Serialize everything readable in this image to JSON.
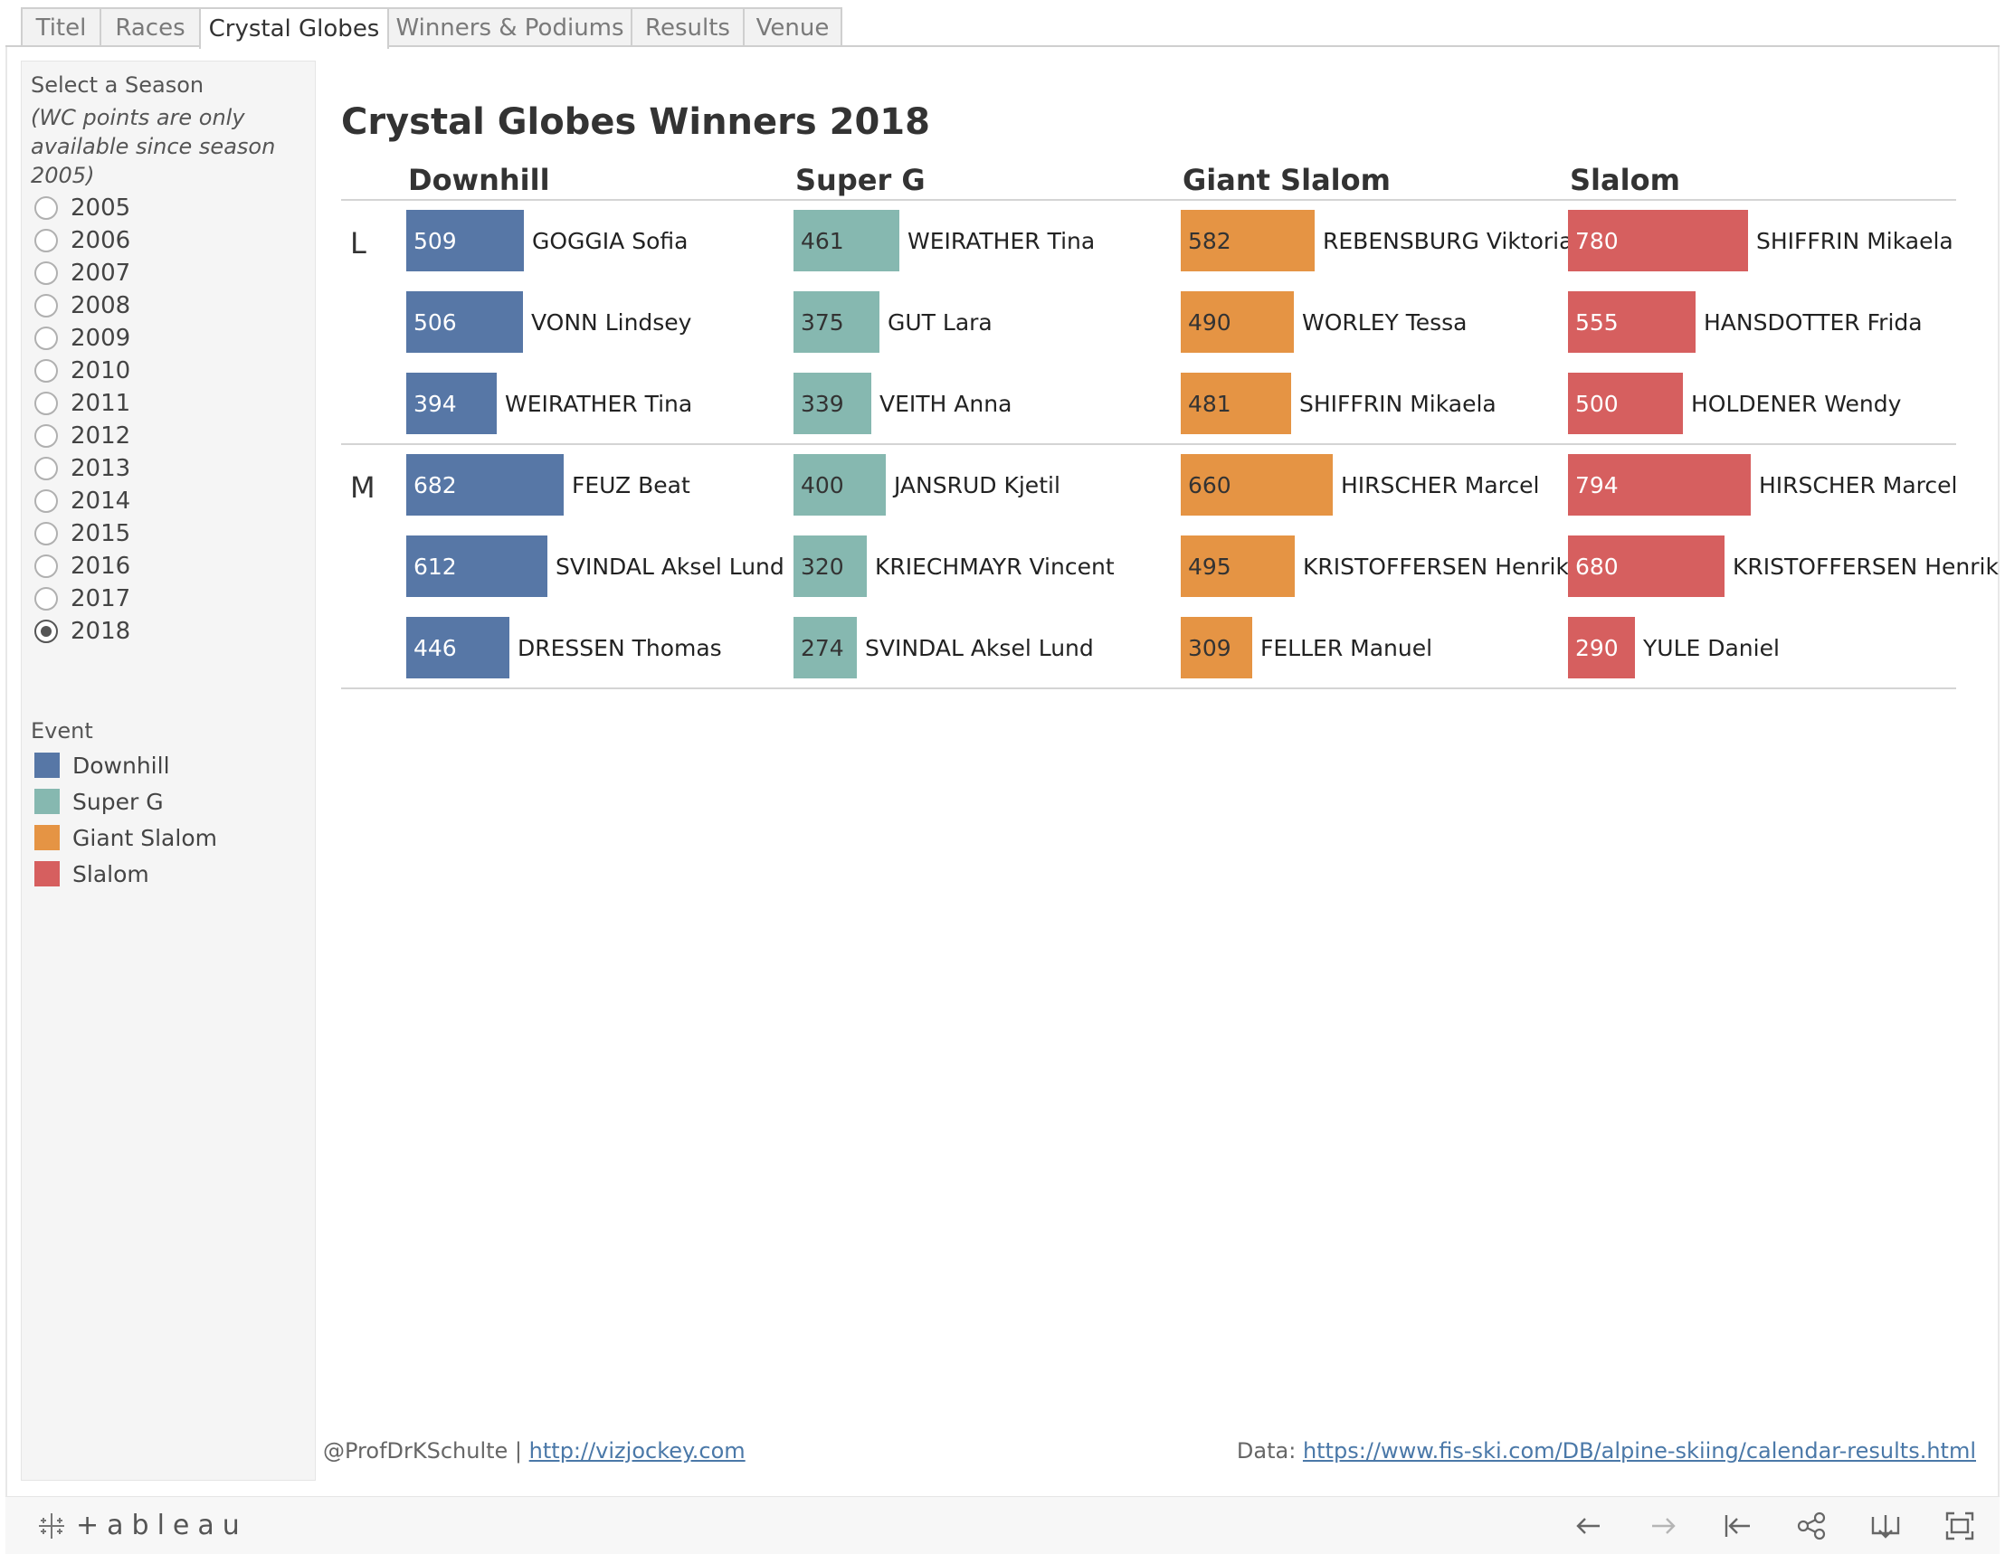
{
  "tabs": [
    {
      "label": "Titel",
      "active": false
    },
    {
      "label": "Races",
      "active": false
    },
    {
      "label": "Crystal Globes",
      "active": true
    },
    {
      "label": "Winners & Podiums",
      "active": false
    },
    {
      "label": "Results",
      "active": false
    },
    {
      "label": "Venue",
      "active": false
    }
  ],
  "sidebar": {
    "season_label": "Select a Season",
    "season_note": "(WC points are only available since season 2005)",
    "seasons": [
      "2005",
      "2006",
      "2007",
      "2008",
      "2009",
      "2010",
      "2011",
      "2012",
      "2013",
      "2014",
      "2015",
      "2016",
      "2017",
      "2018"
    ],
    "selected_season": "2018",
    "event_label": "Event",
    "events": [
      {
        "label": "Downhill",
        "color": "#5777a6"
      },
      {
        "label": "Super G",
        "color": "#86b8b0"
      },
      {
        "label": "Giant Slalom",
        "color": "#e59444"
      },
      {
        "label": "Slalom",
        "color": "#d65f5f"
      }
    ]
  },
  "chart_data": {
    "type": "bar",
    "title": "Crystal Globes Winners 2018",
    "columns": [
      "Downhill",
      "Super G",
      "Giant Slalom",
      "Slalom"
    ],
    "groups": [
      {
        "label": "L",
        "columns": [
          [
            {
              "value": 509,
              "name": "GOGGIA Sofia"
            },
            {
              "value": 506,
              "name": "VONN Lindsey"
            },
            {
              "value": 394,
              "name": "WEIRATHER Tina"
            }
          ],
          [
            {
              "value": 461,
              "name": "WEIRATHER Tina"
            },
            {
              "value": 375,
              "name": "GUT Lara"
            },
            {
              "value": 339,
              "name": "VEITH Anna"
            }
          ],
          [
            {
              "value": 582,
              "name": "REBENSBURG Viktoria"
            },
            {
              "value": 490,
              "name": "WORLEY Tessa"
            },
            {
              "value": 481,
              "name": "SHIFFRIN Mikaela"
            }
          ],
          [
            {
              "value": 780,
              "name": "SHIFFRIN Mikaela"
            },
            {
              "value": 555,
              "name": "HANSDOTTER Frida"
            },
            {
              "value": 500,
              "name": "HOLDENER Wendy"
            }
          ]
        ]
      },
      {
        "label": "M",
        "columns": [
          [
            {
              "value": 682,
              "name": "FEUZ Beat"
            },
            {
              "value": 612,
              "name": "SVINDAL Aksel Lund"
            },
            {
              "value": 446,
              "name": "DRESSEN Thomas"
            }
          ],
          [
            {
              "value": 400,
              "name": "JANSRUD Kjetil"
            },
            {
              "value": 320,
              "name": "KRIECHMAYR Vincent"
            },
            {
              "value": 274,
              "name": "SVINDAL Aksel Lund"
            }
          ],
          [
            {
              "value": 660,
              "name": "HIRSCHER Marcel"
            },
            {
              "value": 495,
              "name": "KRISTOFFERSEN Henrik"
            },
            {
              "value": 309,
              "name": "FELLER Manuel"
            }
          ],
          [
            {
              "value": 794,
              "name": "HIRSCHER Marcel"
            },
            {
              "value": 680,
              "name": "KRISTOFFERSEN Henrik"
            },
            {
              "value": 290,
              "name": "YULE Daniel"
            }
          ]
        ]
      }
    ]
  },
  "footer": {
    "author": "@ProfDrKSchulte | ",
    "author_link": "http://vizjockey.com",
    "data_label": "Data: ",
    "data_link": "https://www.fis-ski.com/DB/alpine-skiing/calendar-results.html"
  },
  "toolbar": {
    "logo_text": "+ableau",
    "icons": [
      "undo-icon",
      "redo-icon",
      "revert-icon",
      "share-icon",
      "download-icon",
      "fullscreen-icon"
    ]
  }
}
